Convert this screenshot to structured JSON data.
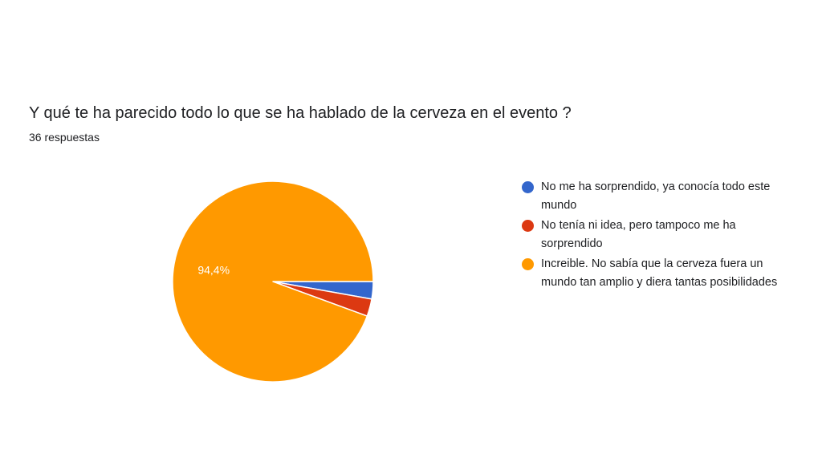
{
  "question": {
    "title": "Y qué te ha parecido todo lo que se ha hablado de la cerveza en el evento ?",
    "responses": "36 respuestas"
  },
  "chart_data": {
    "type": "pie",
    "title": "Y qué te ha parecido todo lo que se ha hablado de la cerveza en el evento ?",
    "categories": [
      "No me ha sorprendido, ya conocía todo este mundo",
      "No tenía ni idea, pero tampoco me ha sorprendido",
      "Increible. No sabía que la cerveza fuera un mundo tan amplio y diera tantas posibilidades"
    ],
    "values": [
      2.8,
      2.8,
      94.4
    ],
    "colors": [
      "#3366cc",
      "#dc3912",
      "#ff9900"
    ],
    "data_labels": [
      "",
      "",
      "94,4%"
    ],
    "legend_position": "right"
  }
}
